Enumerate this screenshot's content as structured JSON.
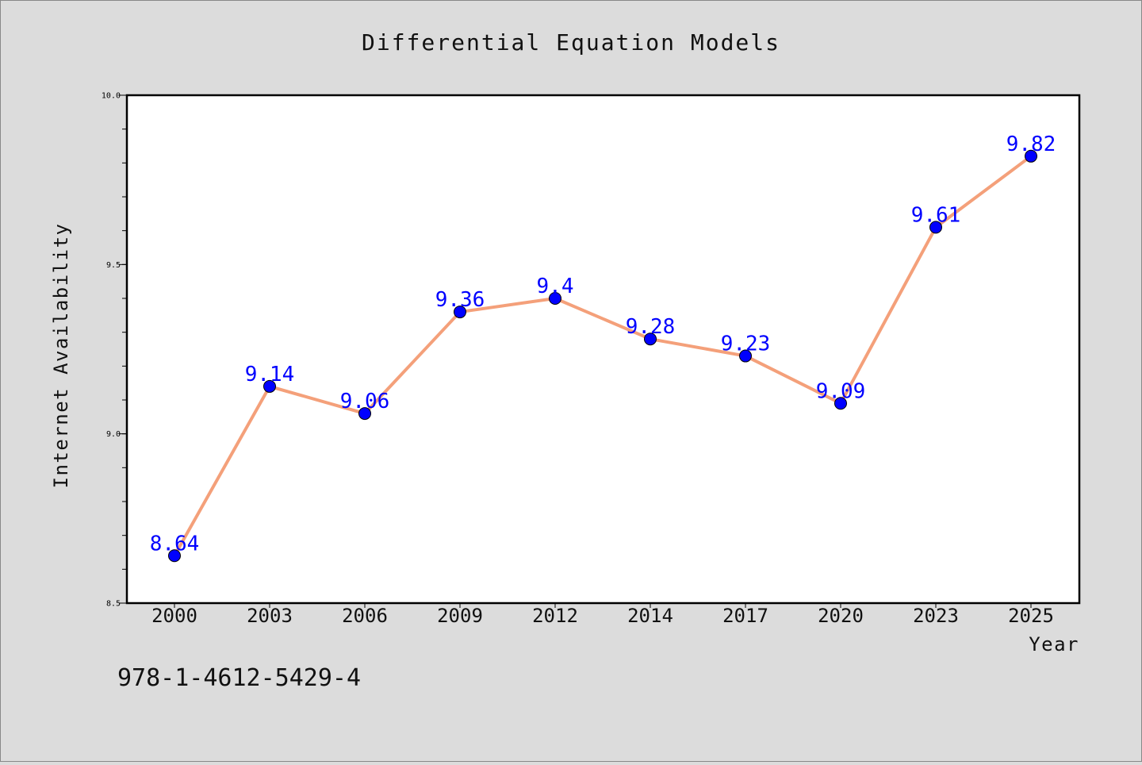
{
  "chart_data": {
    "type": "line",
    "title": "Differential Equation Models",
    "xlabel": "Year",
    "ylabel": "Internet Availability",
    "categories": [
      "2000",
      "2003",
      "2006",
      "2009",
      "2012",
      "2014",
      "2017",
      "2020",
      "2023",
      "2025"
    ],
    "series": [
      {
        "values": [
          8.64,
          9.14,
          9.06,
          9.36,
          9.4,
          9.28,
          9.23,
          9.09,
          9.61,
          9.82
        ],
        "data_labels": [
          "8.64",
          "9.14",
          "9.06",
          "9.36",
          "9.4",
          "9.28",
          "9.23",
          "9.09",
          "9.61",
          "9.82"
        ],
        "line_color": "#f4a07a",
        "marker_color": "#0000ff"
      }
    ],
    "ylim": [
      8.5,
      10.0
    ],
    "yticks": [
      "8.5",
      "9.0",
      "9.5",
      "10.0"
    ],
    "grid": false,
    "legend": "none"
  },
  "footer_text": "978-1-4612-5429-4",
  "colors": {
    "background": "#dcdcdc",
    "plot_background": "#ffffff",
    "label_color": "#0000ff"
  }
}
